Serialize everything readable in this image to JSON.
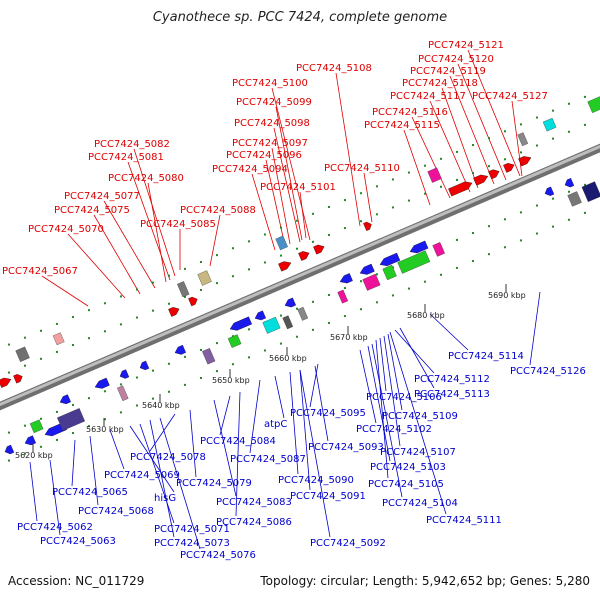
{
  "title": "Cyanothece sp. PCC 7424, complete genome",
  "footer": {
    "accession": "Accession: NC_011729",
    "summary": "Topology: circular; Length: 5,942,652 bp; Genes: 5,280"
  },
  "colors": {
    "forward_label": "#dd0000",
    "reverse_label": "#0000cc",
    "backbone": "#8c8c8c",
    "tick": "#228b22"
  },
  "ticks": [
    "5620 kbp",
    "5630 kbp",
    "5640 kbp",
    "5650 kbp",
    "5660 kbp",
    "5670 kbp",
    "5680 kbp",
    "5690 kbp"
  ],
  "forward_labels": [
    "PCC7424_5067",
    "PCC7424_5070",
    "PCC7424_5075",
    "PCC7424_5077",
    "PCC7424_5080",
    "PCC7424_5081",
    "PCC7424_5082",
    "PCC7424_5085",
    "PCC7424_5088",
    "PCC7424_5094",
    "PCC7424_5096",
    "PCC7424_5097",
    "PCC7424_5098",
    "PCC7424_5099",
    "PCC7424_5100",
    "PCC7424_5101",
    "PCC7424_5108",
    "PCC7424_5110",
    "PCC7424_5115",
    "PCC7424_5116",
    "PCC7424_5117",
    "PCC7424_5118",
    "PCC7424_5119",
    "PCC7424_5120",
    "PCC7424_5121",
    "PCC7424_5127"
  ],
  "reverse_labels": [
    "PCC7424_5062",
    "PCC7424_5063",
    "PCC7424_5065",
    "PCC7424_5068",
    "PCC7424_5069",
    "hisG",
    "PCC7424_5071",
    "PCC7424_5073",
    "PCC7424_5076",
    "PCC7424_5078",
    "PCC7424_5079",
    "PCC7424_5083",
    "PCC7424_5084",
    "PCC7424_5086",
    "PCC7424_5087",
    "atpC",
    "PCC7424_5090",
    "PCC7424_5091",
    "PCC7424_5092",
    "PCC7424_5093",
    "PCC7424_5095",
    "PCC7424_5102",
    "PCC7424_5103",
    "PCC7424_5104",
    "PCC7424_5105",
    "PCC7424_5106",
    "PCC7424_5107",
    "PCC7424_5109",
    "PCC7424_5111",
    "PCC7424_5112",
    "PCC7424_5113",
    "PCC7424_5114",
    "PCC7424_5126"
  ]
}
